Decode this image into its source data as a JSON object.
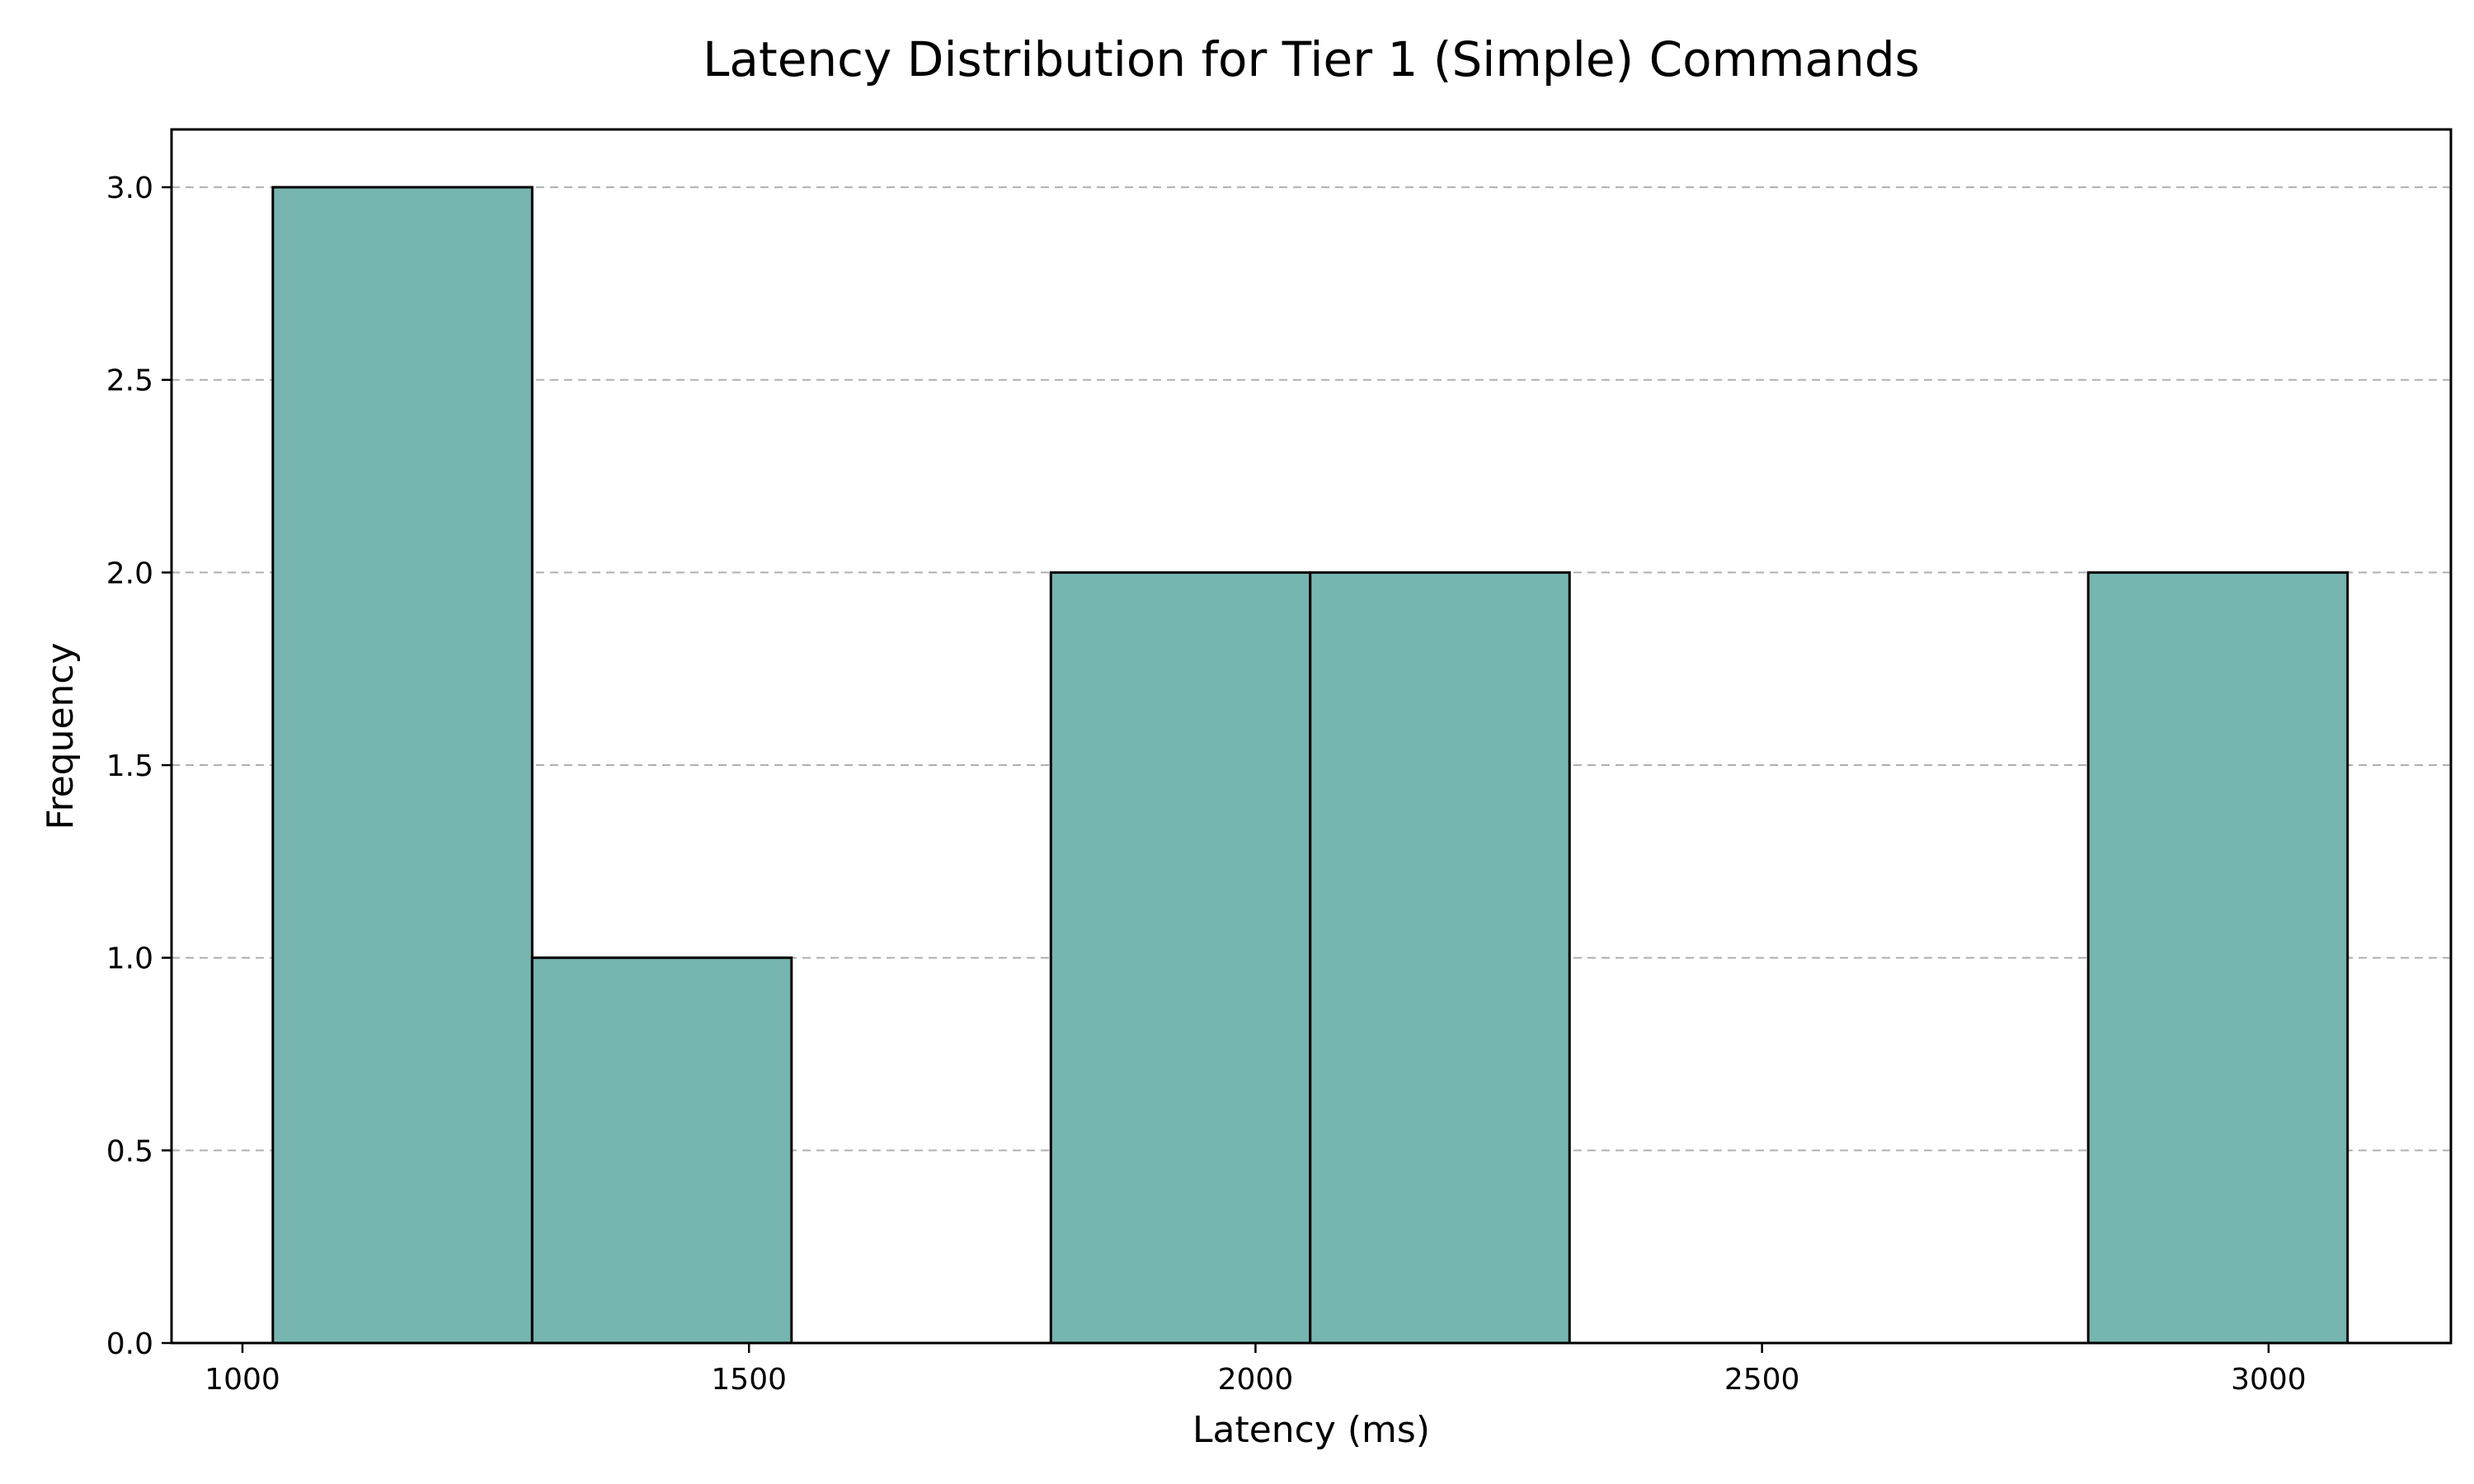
{
  "chart_data": {
    "type": "bar",
    "subtype": "histogram",
    "title": "Latency Distribution for Tier 1 (Simple) Commands",
    "xlabel": "Latency (ms)",
    "ylabel": "Frequency",
    "xlim": [
      930,
      3180
    ],
    "ylim": [
      0,
      3.15
    ],
    "xticks": [
      1000,
      1500,
      2000,
      2500,
      3000
    ],
    "xtick_labels": [
      "1000",
      "1500",
      "2000",
      "2500",
      "3000"
    ],
    "yticks": [
      0,
      0.5,
      1,
      1.5,
      2,
      2.5,
      3
    ],
    "ytick_labels": [
      "0.0",
      "0.5",
      "1.0",
      "1.5",
      "2.0",
      "2.5",
      "3.0"
    ],
    "bin_edges": [
      1030,
      1286,
      1542,
      1798,
      2054,
      2310,
      2566,
      2822,
      3078
    ],
    "counts": [
      3,
      1,
      0,
      2,
      2,
      0,
      0,
      2
    ],
    "bar_color": "#77b5b0",
    "edge_color": "#000000",
    "grid": "y-dashed",
    "legend": "none"
  }
}
